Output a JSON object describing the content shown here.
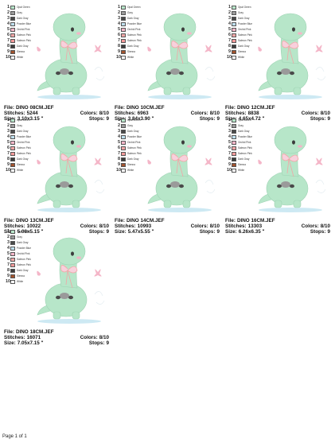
{
  "labels": {
    "file": "File:",
    "stitches": "Stitches:",
    "colors": "Colors:",
    "size": "Size:",
    "stops": "Stops:"
  },
  "thread_colors": [
    {
      "num": "1",
      "name": "Opal Green",
      "color": "#b7e6c9"
    },
    {
      "num": "2",
      "name": "Gray",
      "color": "#9a9a9a"
    },
    {
      "num": "3",
      "name": "Dark Gray",
      "color": "#4a4a4a"
    },
    {
      "num": "4",
      "name": "Powder Blue",
      "color": "#bfe0ef"
    },
    {
      "num": "5",
      "name": "Orchid Pink",
      "color": "#f4b6c8"
    },
    {
      "num": "6",
      "name": "Salmon Pink",
      "color": "#f2a6a6"
    },
    {
      "num": "7",
      "name": "Salmon Pink",
      "color": "#f29a9a"
    },
    {
      "num": "8",
      "name": "Dark Gray",
      "color": "#3c3c3c"
    },
    {
      "num": "9",
      "name": "Sienna",
      "color": "#a0522d"
    },
    {
      "num": "10",
      "name": "White",
      "color": "#ffffff"
    }
  ],
  "designs": [
    {
      "file": "DINO 08CM.JEF",
      "stitches": "5244",
      "colors": "8/10",
      "size": "3.10x3.15 \"",
      "stops": "9"
    },
    {
      "file": "DINO 10CM.JEF",
      "stitches": "6963",
      "colors": "8/10",
      "size": "3.84x3.90 \"",
      "stops": "9"
    },
    {
      "file": "DINO 12CM.JEF",
      "stitches": "8838",
      "colors": "8/10",
      "size": "4.65x4.72 \"",
      "stops": "9"
    },
    {
      "file": "DINO 13CM.JEF",
      "stitches": "10022",
      "colors": "8/10",
      "size": "5.08x5.15 \"",
      "stops": "9"
    },
    {
      "file": "DINO 14CM.JEF",
      "stitches": "10993",
      "colors": "8/10",
      "size": "5.47x5.55 \"",
      "stops": "9"
    },
    {
      "file": "DINO 16CM.JEF",
      "stitches": "13303",
      "colors": "8/10",
      "size": "6.26x6.35 \"",
      "stops": "9"
    },
    {
      "file": "DINO 18CM.JEF",
      "stitches": "16071",
      "colors": "8/10",
      "size": "7.05x7.15 \"",
      "stops": "9"
    }
  ],
  "footer": "Page 1 of 1"
}
